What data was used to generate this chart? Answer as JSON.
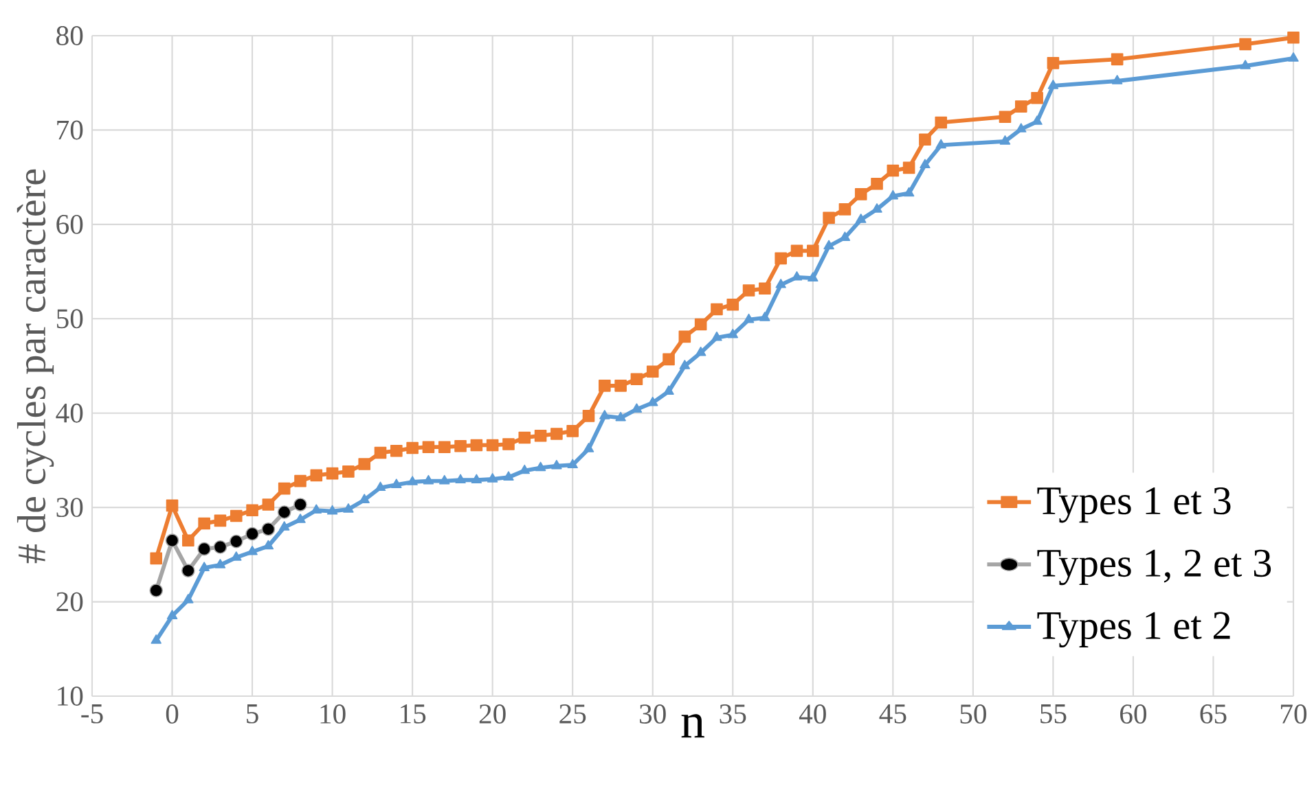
{
  "chart_data": {
    "type": "line",
    "xlabel": "n",
    "ylabel": "# de cycles par caractère",
    "xlim": [
      -5,
      70
    ],
    "xticks": [
      -5,
      0,
      5,
      10,
      15,
      20,
      25,
      30,
      35,
      40,
      45,
      50,
      55,
      60,
      65,
      70
    ],
    "ylim": [
      10,
      80
    ],
    "yticks": [
      10,
      20,
      30,
      40,
      50,
      60,
      70,
      80
    ],
    "grid": true,
    "legend": "bottom right",
    "series": [
      {
        "name": "Types 1 et 3",
        "color": "#ed7d31",
        "marker": "square",
        "x": [
          -1,
          0,
          1,
          2,
          3,
          4,
          5,
          6,
          7,
          8,
          9,
          10,
          11,
          12,
          13,
          14,
          15,
          16,
          17,
          18,
          19,
          20,
          21,
          22,
          23,
          24,
          25,
          26,
          27,
          28,
          29,
          30,
          31,
          32,
          33,
          34,
          35,
          36,
          37,
          38,
          39,
          40,
          41,
          42,
          43,
          44,
          45,
          46,
          47,
          48,
          52,
          53,
          54,
          55,
          59,
          67,
          70
        ],
        "values": [
          24.6,
          30.2,
          26.5,
          28.3,
          28.6,
          29.1,
          29.7,
          30.3,
          32.0,
          32.8,
          33.4,
          33.6,
          33.8,
          34.6,
          35.8,
          36.0,
          36.3,
          36.4,
          36.4,
          36.5,
          36.6,
          36.6,
          36.7,
          37.4,
          37.6,
          37.8,
          38.1,
          39.7,
          42.9,
          42.9,
          43.6,
          44.4,
          45.7,
          48.1,
          49.4,
          51.0,
          51.5,
          53.0,
          53.2,
          56.4,
          57.2,
          57.2,
          60.7,
          61.6,
          63.2,
          64.3,
          65.7,
          66.0,
          69.0,
          70.8,
          71.4,
          72.5,
          73.4,
          77.1,
          77.5,
          79.1,
          79.8
        ]
      },
      {
        "name": "Types 1, 2 et 3",
        "color": "#a5a5a5",
        "marker": "circle",
        "x": [
          -1,
          0,
          1,
          2,
          3,
          4,
          5,
          6,
          7,
          8
        ],
        "values": [
          21.2,
          26.5,
          23.3,
          25.6,
          25.8,
          26.4,
          27.2,
          27.7,
          29.5,
          30.3
        ]
      },
      {
        "name": "Types 1 et 2",
        "color": "#5b9bd5",
        "marker": "triangle",
        "x": [
          -1,
          0,
          1,
          2,
          3,
          4,
          5,
          6,
          7,
          8,
          9,
          10,
          11,
          12,
          13,
          14,
          15,
          16,
          17,
          18,
          19,
          20,
          21,
          22,
          23,
          24,
          25,
          26,
          27,
          28,
          29,
          30,
          31,
          32,
          33,
          34,
          35,
          36,
          37,
          38,
          39,
          40,
          41,
          42,
          43,
          44,
          45,
          46,
          47,
          48,
          52,
          53,
          54,
          55,
          59,
          67,
          70
        ],
        "values": [
          15.9,
          18.5,
          20.2,
          23.6,
          23.9,
          24.7,
          25.3,
          25.9,
          27.9,
          28.7,
          29.7,
          29.6,
          29.8,
          30.8,
          32.1,
          32.4,
          32.7,
          32.8,
          32.8,
          32.9,
          32.9,
          33.0,
          33.2,
          33.9,
          34.2,
          34.4,
          34.5,
          36.2,
          39.7,
          39.5,
          40.4,
          41.1,
          42.3,
          45.0,
          46.4,
          48.0,
          48.3,
          49.9,
          50.1,
          53.6,
          54.4,
          54.3,
          57.7,
          58.6,
          60.5,
          61.6,
          63.0,
          63.3,
          66.3,
          68.4,
          68.8,
          70.1,
          70.9,
          74.7,
          75.2,
          76.8,
          77.6
        ]
      }
    ]
  }
}
